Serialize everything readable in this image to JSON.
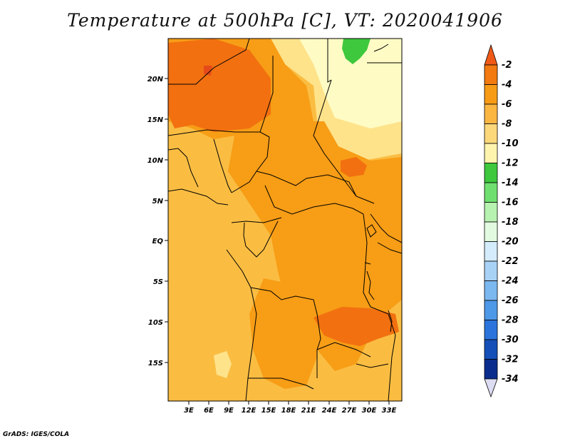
{
  "title": "Temperature at 500hPa [C], VT: 2020041906",
  "credit": "GrADS: IGES/COLA",
  "map": {
    "lat_ticks": [
      "20N",
      "15N",
      "10N",
      "5N",
      "EQ",
      "5S",
      "10S",
      "15S"
    ],
    "lon_ticks": [
      "3E",
      "6E",
      "9E",
      "12E",
      "15E",
      "18E",
      "21E",
      "24E",
      "27E",
      "30E",
      "33E"
    ],
    "colors": {
      "c_m2": "#e54b1a",
      "c_m4": "#f27010",
      "c_m6": "#f79d16",
      "c_m8": "#fabd42",
      "c_m10": "#fee38b",
      "c_m12": "#fefcc4",
      "c_m14": "#3dc83d"
    }
  },
  "legend": {
    "labels": [
      "-2",
      "-4",
      "-6",
      "-8",
      "-10",
      "-12",
      "-14",
      "-16",
      "-18",
      "-20",
      "-22",
      "-24",
      "-26",
      "-28",
      "-30",
      "-32",
      "-34"
    ],
    "colors": [
      "#f05a18",
      "#f27a10",
      "#f79b16",
      "#fbb642",
      "#fdd87a",
      "#fef4ae",
      "#3dc83d",
      "#6fe06f",
      "#b7f2b0",
      "#e2fbe0",
      "#d4ecfb",
      "#a8d2f5",
      "#7cb8f0",
      "#4e98e8",
      "#2a74dc",
      "#1450b8",
      "#0a2c8c",
      "#0f1470"
    ]
  }
}
